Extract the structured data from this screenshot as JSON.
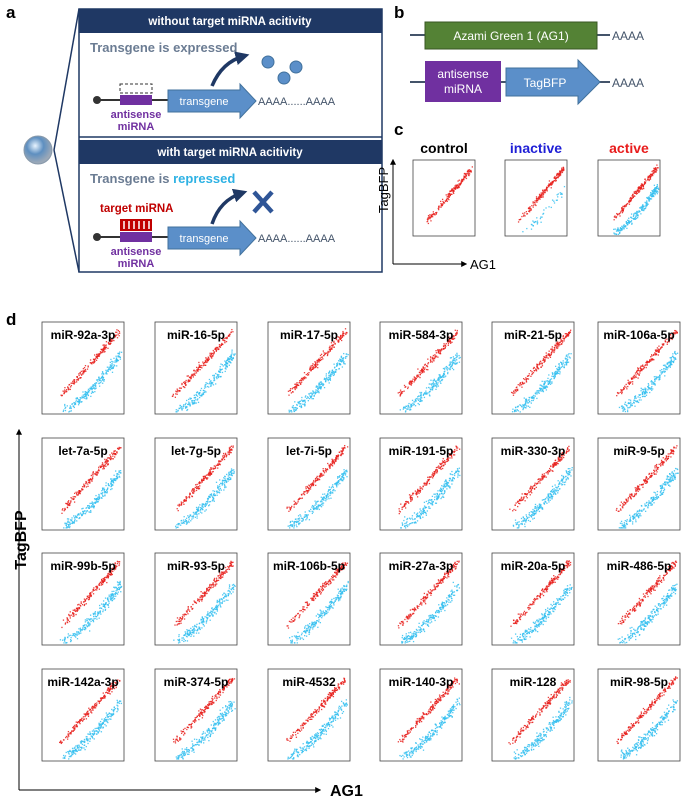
{
  "panels": {
    "a": {
      "label": "a",
      "top": {
        "header": "without target miRNA acitivity",
        "statement": "Transgene is expressed",
        "antisense": "antisense",
        "antisense_line2": "miRNA",
        "transgene": "transgene",
        "polyA": "AAAA......AAAA"
      },
      "bottom": {
        "header": "with target miRNA acitivity",
        "statement_prefix": "Transgene is",
        "statement_highlight": "repressed",
        "target": "target miRNA",
        "antisense": "antisense",
        "antisense_line2": "miRNA",
        "transgene": "transgene",
        "polyA": "AAAA......AAAA"
      }
    },
    "b": {
      "label": "b",
      "construct1": {
        "box": "Azami Green 1 (AG1)",
        "tail": "AAAA"
      },
      "construct2": {
        "box1": "antisense",
        "box1_line2": "miRNA",
        "box2": "TagBFP",
        "tail": "AAAA"
      }
    },
    "c": {
      "label": "c",
      "y_axis": "TagBFP",
      "x_axis": "AG1",
      "plots": [
        "control",
        "inactive",
        "active"
      ]
    },
    "d": {
      "label": "d",
      "y_axis": "TagBFP",
      "x_axis": "AG1",
      "plots": [
        "miR-92a-3p",
        "miR-16-5p",
        "miR-17-5p",
        "miR-584-3p",
        "miR-21-5p",
        "miR-106a-5p",
        "let-7a-5p",
        "let-7g-5p",
        "let-7i-5p",
        "miR-191-5p",
        "miR-330-3p",
        "miR-9-5p",
        "miR-99b-5p",
        "miR-93-5p",
        "miR-106b-5p",
        "miR-27a-3p",
        "miR-20a-5p",
        "miR-486-5p",
        "miR-142a-3p",
        "miR-374-5p",
        "miR-4532",
        "miR-140-3p",
        "miR-128",
        "miR-98-5p"
      ]
    }
  }
}
